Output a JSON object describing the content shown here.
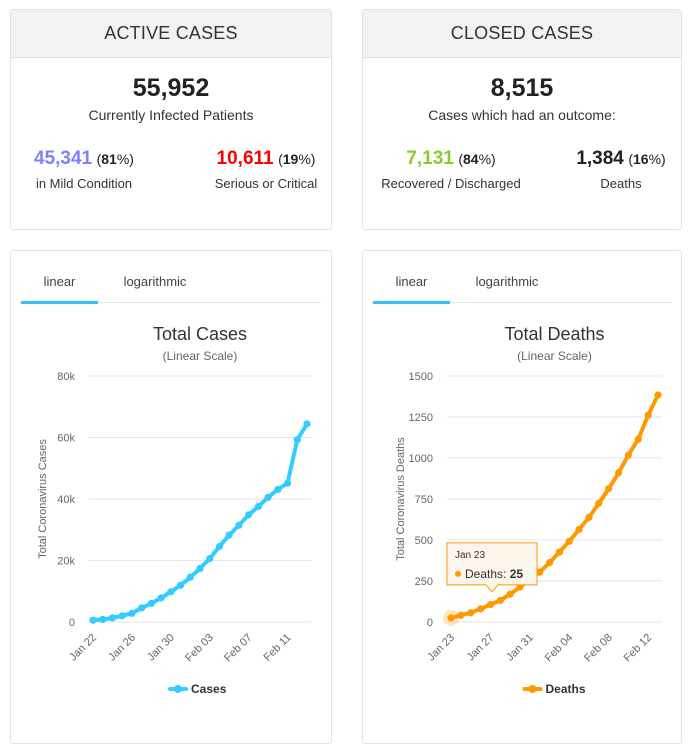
{
  "active": {
    "header": "ACTIVE CASES",
    "total": "55,952",
    "total_label": "Currently Infected Patients",
    "mild_value": "45,341",
    "mild_pct": "81",
    "mild_label": "in Mild Condition",
    "serious_value": "10,611",
    "serious_pct": "19",
    "serious_label": "Serious or Critical"
  },
  "closed": {
    "header": "CLOSED CASES",
    "total": "8,515",
    "total_label": "Cases which had an outcome:",
    "recovered_value": "7,131",
    "recovered_pct": "84",
    "recovered_label": "Recovered / Discharged",
    "deaths_value": "1,384",
    "deaths_pct": "16",
    "deaths_label": "Deaths"
  },
  "tabs": {
    "linear": "linear",
    "log": "logarithmic"
  },
  "colors": {
    "mild": "#8080ff",
    "serious": "#ff0000",
    "recovered": "#8ACA2B",
    "cases_line": "#33CCFF",
    "deaths_line": "#FF9900",
    "tab_active": "#33c4f0"
  },
  "tooltip": {
    "date": "Jan 23",
    "series": "Deaths",
    "value": "25"
  },
  "chart_data": [
    {
      "type": "line",
      "title": "Total Cases",
      "subtitle": "(Linear Scale)",
      "ylabel": "Total Coronavirus Cases",
      "ylim": [
        0,
        80000
      ],
      "yticks": [
        0,
        20000,
        40000,
        60000,
        80000
      ],
      "ytick_labels": [
        "0",
        "20k",
        "40k",
        "60k",
        "80k"
      ],
      "xtick_labels": [
        [
          "0",
          "Jan 22"
        ],
        [
          "4",
          "Jan 26"
        ],
        [
          "8",
          "Jan 30"
        ],
        [
          "12",
          "Feb 03"
        ],
        [
          "16",
          "Feb 07"
        ],
        [
          "20",
          "Feb 11"
        ]
      ],
      "x": [
        "Jan 22",
        "Jan 23",
        "Jan 24",
        "Jan 25",
        "Jan 26",
        "Jan 27",
        "Jan 28",
        "Jan 29",
        "Jan 30",
        "Jan 31",
        "Feb 01",
        "Feb 02",
        "Feb 03",
        "Feb 04",
        "Feb 05",
        "Feb 06",
        "Feb 07",
        "Feb 08",
        "Feb 09",
        "Feb 10",
        "Feb 11",
        "Feb 12",
        "Feb 13"
      ],
      "series": [
        {
          "name": "Cases",
          "values": [
            580,
            845,
            1317,
            2015,
            2800,
            4581,
            6058,
            7813,
            9821,
            11948,
            14551,
            17389,
            20628,
            24553,
            28276,
            31439,
            34876,
            37552,
            40553,
            43099,
            45134,
            59287,
            64438
          ]
        }
      ],
      "legend": "bottom"
    },
    {
      "type": "line",
      "title": "Total Deaths",
      "subtitle": "(Linear Scale)",
      "ylabel": "Total Coronavirus Deaths",
      "ylim": [
        0,
        1500
      ],
      "yticks": [
        0,
        250,
        500,
        750,
        1000,
        1250,
        1500
      ],
      "ytick_labels": [
        "0",
        "250",
        "500",
        "750",
        "1000",
        "1250",
        "1500"
      ],
      "xtick_labels": [
        [
          "0",
          "Jan 23"
        ],
        [
          "4",
          "Jan 27"
        ],
        [
          "8",
          "Jan 31"
        ],
        [
          "12",
          "Feb 04"
        ],
        [
          "16",
          "Feb 08"
        ],
        [
          "20",
          "Feb 12"
        ]
      ],
      "x": [
        "Jan 23",
        "Jan 24",
        "Jan 25",
        "Jan 26",
        "Jan 27",
        "Jan 28",
        "Jan 29",
        "Jan 30",
        "Jan 31",
        "Feb 01",
        "Feb 02",
        "Feb 03",
        "Feb 04",
        "Feb 05",
        "Feb 06",
        "Feb 07",
        "Feb 08",
        "Feb 09",
        "Feb 10",
        "Feb 11",
        "Feb 12",
        "Feb 13"
      ],
      "series": [
        {
          "name": "Deaths",
          "values": [
            25,
            41,
            56,
            80,
            106,
            132,
            170,
            213,
            259,
            304,
            362,
            426,
            492,
            565,
            638,
            724,
            813,
            910,
            1018,
            1115,
            1261,
            1384
          ]
        }
      ],
      "legend": "bottom"
    }
  ]
}
